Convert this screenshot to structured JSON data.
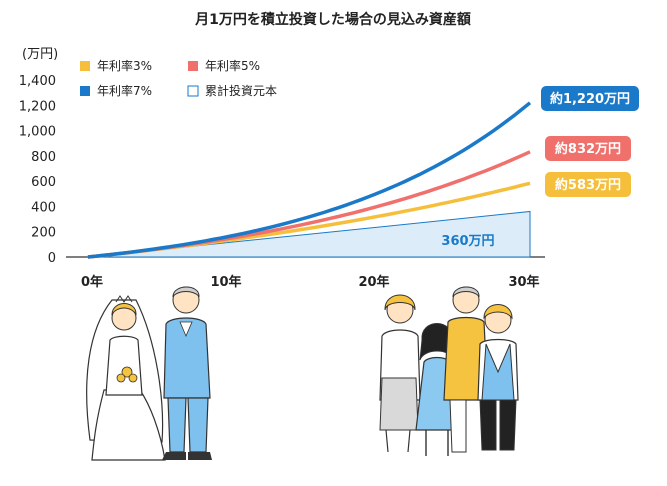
{
  "chart_data": {
    "type": "line",
    "title": "月1万円を積立投資した場合の見込み資産額",
    "ylabel": "(万円)",
    "ylim": [
      0,
      1400
    ],
    "yticks": [
      "1,400",
      "1,200",
      "1,000",
      "800",
      "600",
      "400",
      "200",
      "0"
    ],
    "ytick_values": [
      1400,
      1200,
      1000,
      800,
      600,
      400,
      200,
      0
    ],
    "x_labels": [
      {
        "label": "0年",
        "year": 0
      },
      {
        "label": "10年",
        "year": 10
      },
      {
        "label": "20年",
        "year": 20
      },
      {
        "label": "30年",
        "year": 30
      }
    ],
    "grid": false,
    "legend_position": "top-left",
    "series": [
      {
        "name": "年利率3%",
        "color": "#f6bf3b",
        "rate": 0.03,
        "final_label": "約583万円",
        "final_value": 583
      },
      {
        "name": "年利率5%",
        "color": "#f0706c",
        "rate": 0.05,
        "final_label": "約832万円",
        "final_value": 832
      },
      {
        "name": "年利率7%",
        "color": "#1a7ac9",
        "rate": 0.07,
        "final_label": "約1,220万円",
        "final_value": 1220
      },
      {
        "name": "累計投資元本",
        "color": "#1a7ac9",
        "fill": "#dcecf8",
        "final_label": "360万円",
        "final_value": 360
      }
    ]
  },
  "illustrations": {
    "left": "wedding-couple",
    "right": "family-of-four"
  }
}
